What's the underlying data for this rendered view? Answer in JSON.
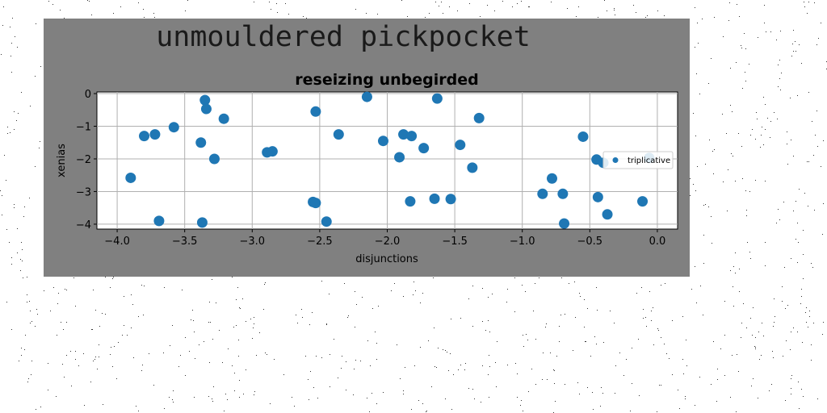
{
  "figure": {
    "suptitle": "unmouldered pickpocket",
    "background_color": "#808080"
  },
  "chart_data": {
    "type": "scatter",
    "title": "reseizing unbegirded",
    "xlabel": "disjunctions",
    "ylabel": "xenias",
    "xlim": [
      -4.15,
      0.15
    ],
    "ylim": [
      -4.15,
      0.05
    ],
    "xticks": [
      -4.0,
      -3.5,
      -3.0,
      -2.5,
      -2.0,
      -1.5,
      -1.0,
      -0.5,
      0.0
    ],
    "xtick_labels": [
      "−4.0",
      "−3.5",
      "−3.0",
      "−2.5",
      "−2.0",
      "−1.5",
      "−1.0",
      "−0.5",
      "0.0"
    ],
    "yticks": [
      0,
      -1,
      -2,
      -3,
      -4
    ],
    "ytick_labels": [
      "0",
      "−1",
      "−2",
      "−3",
      "−4"
    ],
    "grid": true,
    "legend_position": "center-right",
    "series": [
      {
        "name": "triplicative",
        "color": "#1f77b4",
        "x": [
          -3.9,
          -3.8,
          -3.72,
          -3.69,
          -3.58,
          -3.38,
          -3.37,
          -3.35,
          -3.34,
          -3.28,
          -3.21,
          -2.89,
          -2.85,
          -2.55,
          -2.53,
          -2.53,
          -2.45,
          -2.36,
          -2.15,
          -2.03,
          -1.91,
          -1.88,
          -1.83,
          -1.82,
          -1.73,
          -1.65,
          -1.63,
          -1.53,
          -1.46,
          -1.37,
          -1.32,
          -0.85,
          -0.78,
          -0.7,
          -0.69,
          -0.55,
          -0.45,
          -0.44,
          -0.4,
          -0.37,
          -0.11,
          -0.06
        ],
        "y": [
          -2.58,
          -1.3,
          -1.25,
          -3.9,
          -1.03,
          -1.5,
          -3.95,
          -0.2,
          -0.47,
          -2.0,
          -0.77,
          -1.8,
          -1.77,
          -3.32,
          -3.35,
          -0.55,
          -3.92,
          -1.25,
          -0.1,
          -1.45,
          -1.95,
          -1.25,
          -3.3,
          -1.3,
          -1.67,
          -3.22,
          -0.15,
          -3.23,
          -1.57,
          -2.27,
          -0.75,
          -3.07,
          -2.6,
          -3.07,
          -3.98,
          -1.32,
          -2.02,
          -3.17,
          -2.12,
          -3.7,
          -3.3,
          -1.97
        ]
      }
    ]
  }
}
